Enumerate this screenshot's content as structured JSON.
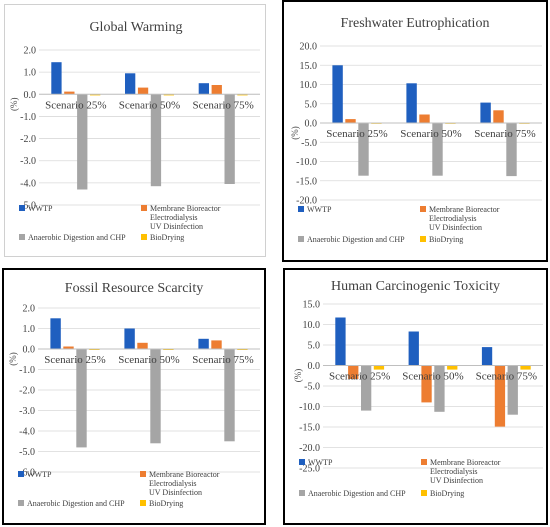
{
  "colors": {
    "series": [
      "#1f5fbf",
      "#ed7d31",
      "#a5a5a5",
      "#ffc000"
    ],
    "grid": "#d9d9d9",
    "axis": "#bfbfbf"
  },
  "chart_data": [
    {
      "type": "bar",
      "title": "Global Warming",
      "ylabel": "(%)",
      "categories": [
        "Scenario 25%",
        "Scenario 50%",
        "Scenario 75%"
      ],
      "ylim": [
        -5.0,
        2.0
      ],
      "yticks": [
        "2.0",
        "1.0",
        "0.0",
        "-1.0",
        "-2.0",
        "-3.0",
        "-4.0",
        "-5.0"
      ],
      "grid": true,
      "legend_position": "bottom",
      "series": [
        {
          "name": "WWTP",
          "values": [
            1.45,
            0.95,
            0.5
          ]
        },
        {
          "name": "Membrane Bioreactor Electrodialysis UV Disinfection",
          "values": [
            0.12,
            0.3,
            0.42
          ]
        },
        {
          "name": "Anaerobic Digestion and CHP",
          "values": [
            -4.3,
            -4.15,
            -4.05
          ]
        },
        {
          "name": "BioDrying",
          "values": [
            -0.05,
            -0.05,
            -0.05
          ]
        }
      ]
    },
    {
      "type": "bar",
      "title": "Freshwater Eutrophication",
      "ylabel": "(%)",
      "categories": [
        "Scenario 25%",
        "Scenario 50%",
        "Scenario 75%"
      ],
      "ylim": [
        -20.0,
        20.0
      ],
      "yticks": [
        "20.0",
        "15.0",
        "10.0",
        "5.0",
        "0.0",
        "-5.0",
        "-10.0",
        "-15.0",
        "-20.0"
      ],
      "grid": true,
      "legend_position": "bottom",
      "series": [
        {
          "name": "WWTP",
          "values": [
            15.0,
            10.3,
            5.3
          ]
        },
        {
          "name": "Membrane Bioreactor Electrodialysis UV Disinfection",
          "values": [
            1.0,
            2.2,
            3.3
          ]
        },
        {
          "name": "Anaerobic Digestion and CHP",
          "values": [
            -13.7,
            -13.7,
            -13.8
          ]
        },
        {
          "name": "BioDrying",
          "values": [
            -0.2,
            -0.2,
            -0.2
          ]
        }
      ]
    },
    {
      "type": "bar",
      "title": "Fossil Resource Scarcity",
      "ylabel": "(%)",
      "categories": [
        "Scenario 25%",
        "Scenario 50%",
        "Scenario 75%"
      ],
      "ylim": [
        -6.0,
        2.0
      ],
      "yticks": [
        "2.0",
        "1.0",
        "0.0",
        "-1.0",
        "-2.0",
        "-3.0",
        "-4.0",
        "-5.0",
        "-6.0"
      ],
      "grid": true,
      "legend_position": "bottom",
      "series": [
        {
          "name": "WWTP",
          "values": [
            1.5,
            1.0,
            0.5
          ]
        },
        {
          "name": "Membrane Bioreactor Electrodialysis UV Disinfection",
          "values": [
            0.12,
            0.3,
            0.42
          ]
        },
        {
          "name": "Anaerobic Digestion and CHP",
          "values": [
            -4.8,
            -4.6,
            -4.5
          ]
        },
        {
          "name": "BioDrying",
          "values": [
            -0.05,
            -0.05,
            -0.05
          ]
        }
      ]
    },
    {
      "type": "bar",
      "title": "Human Carcinogenic Toxicity",
      "ylabel": "(%)",
      "categories": [
        "Scenario 25%",
        "Scenario 50%",
        "Scenario 75%"
      ],
      "ylim": [
        -25.0,
        15.0
      ],
      "yticks": [
        "15.0",
        "10.0",
        "5.0",
        "0.0",
        "-5.0",
        "-10.0",
        "-15.0",
        "-20.0",
        "-25.0"
      ],
      "grid": true,
      "legend_position": "bottom",
      "series": [
        {
          "name": "WWTP",
          "values": [
            11.7,
            8.3,
            4.5
          ]
        },
        {
          "name": "Membrane Bioreactor Electrodialysis UV Disinfection",
          "values": [
            -3.3,
            -9.0,
            -14.9
          ]
        },
        {
          "name": "Anaerobic Digestion and CHP",
          "values": [
            -11.0,
            -11.3,
            -12.0
          ]
        },
        {
          "name": "BioDrying",
          "values": [
            -1.0,
            -1.0,
            -1.0
          ]
        }
      ]
    }
  ]
}
